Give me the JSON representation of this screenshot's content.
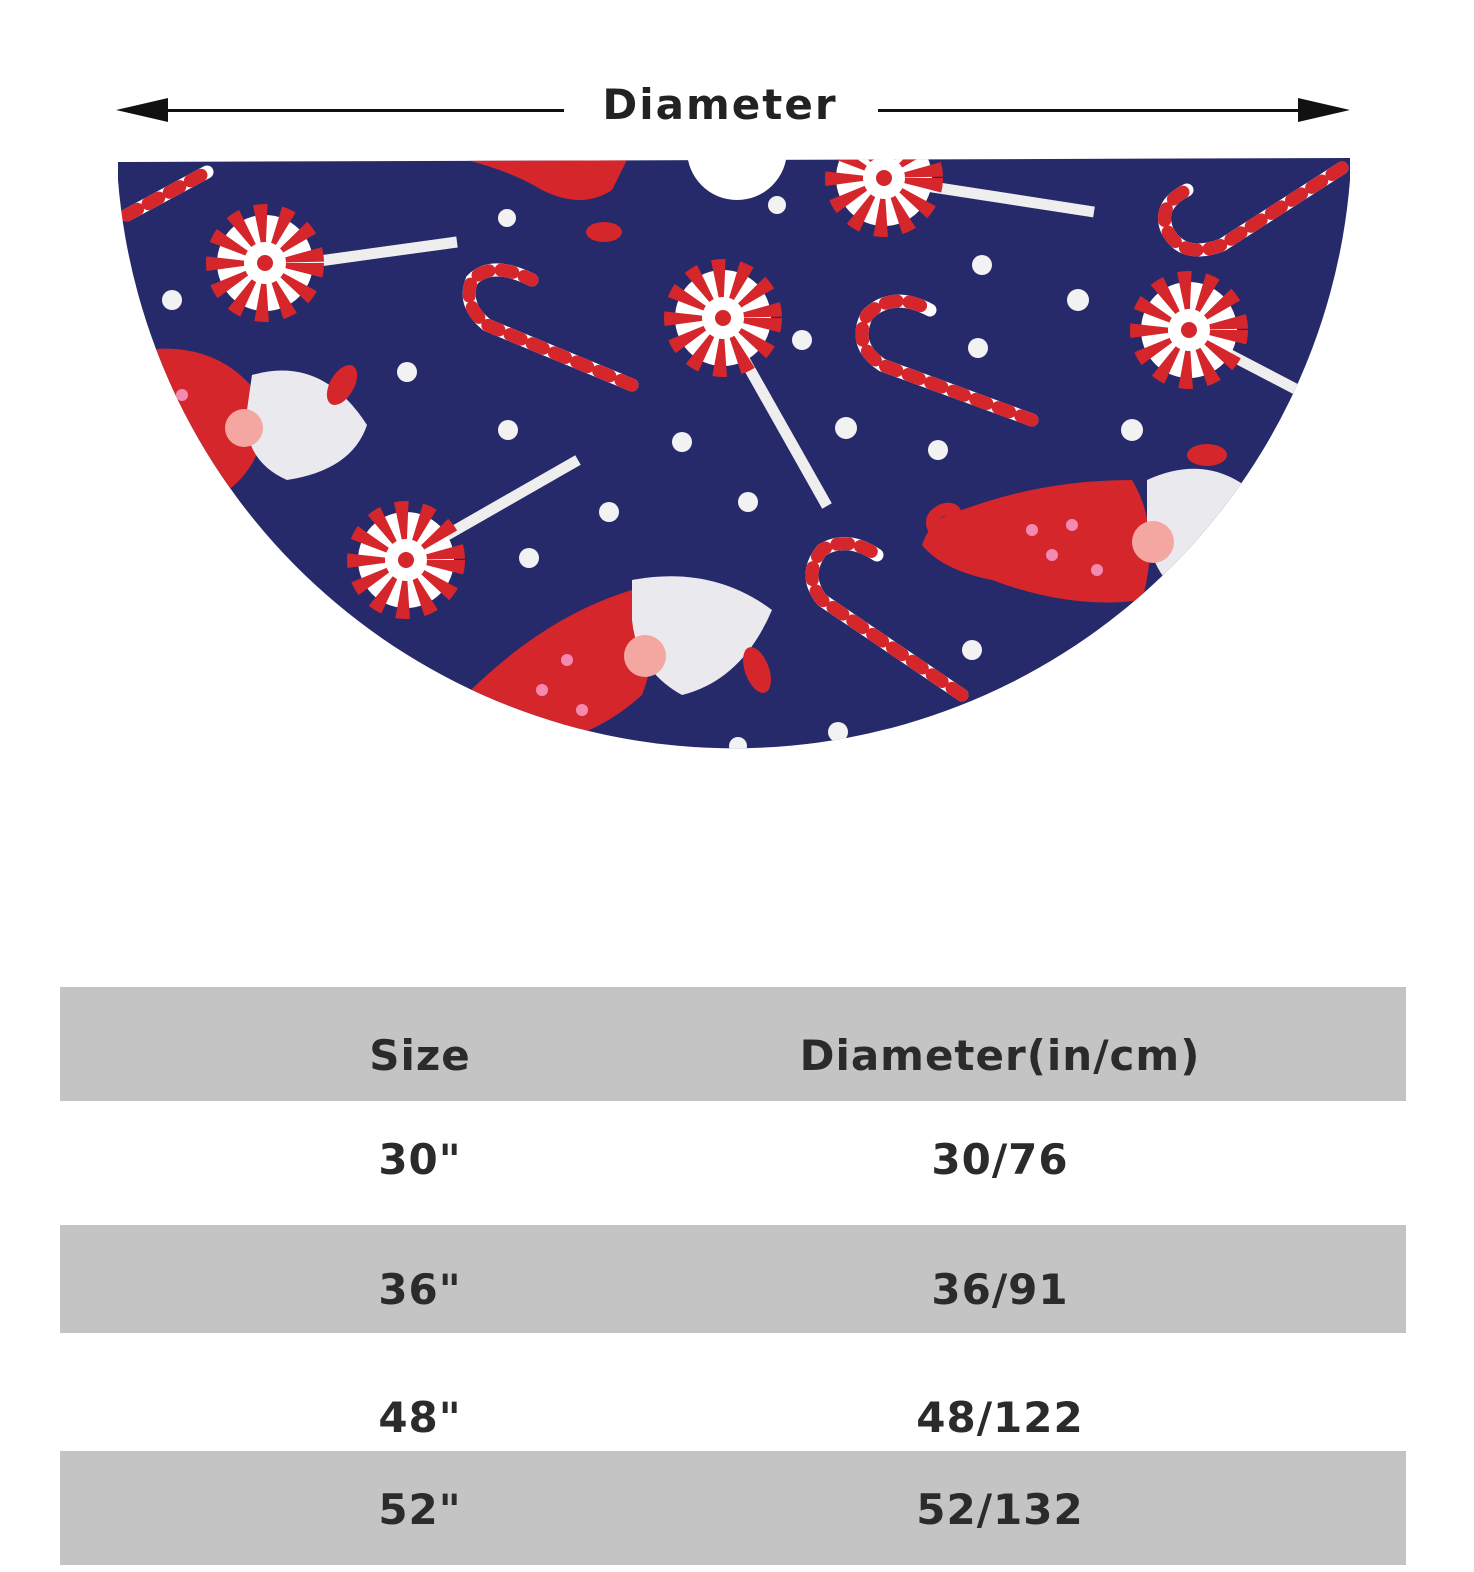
{
  "dimension_label": "Diameter",
  "table": {
    "header": {
      "size": "Size",
      "diameter": "Diameter(in/cm)"
    },
    "rows": [
      {
        "size": "30\"",
        "diameter": "30/76"
      },
      {
        "size": "36\"",
        "diameter": "36/91"
      },
      {
        "size": "48\"",
        "diameter": "48/122"
      },
      {
        "size": "52\"",
        "diameter": "52/132"
      }
    ]
  },
  "colors": {
    "fabric": "#262a6b",
    "candy_red": "#d5262b",
    "row_shade": "#c4c4c4"
  }
}
